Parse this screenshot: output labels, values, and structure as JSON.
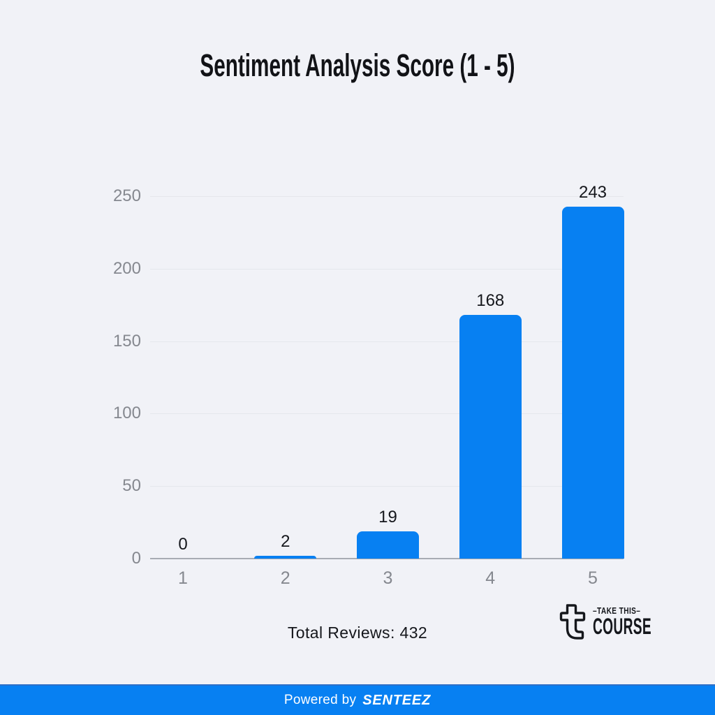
{
  "chart_data": {
    "type": "bar",
    "title": "Sentiment Analysis Score (1 - 5)",
    "categories": [
      "1",
      "2",
      "3",
      "4",
      "5"
    ],
    "values": [
      0,
      2,
      19,
      168,
      243
    ],
    "value_labels": [
      "0",
      "2",
      "19",
      "168",
      "243"
    ],
    "xlabel": "",
    "ylabel": "",
    "ylim": [
      0,
      250
    ],
    "yticks": [
      0,
      50,
      100,
      150,
      200,
      250
    ],
    "grid": true,
    "legend": false,
    "bar_color": "#0780f2"
  },
  "summary": {
    "total_reviews": "Total Reviews: 432"
  },
  "logo": {
    "icon": "take-this-course-t-monogram-icon",
    "top_line": "–TAKE THIS–",
    "bottom_line": "COURSE"
  },
  "footer": {
    "powered_by": "Powered by",
    "brand": "SENTEEZ"
  },
  "colors": {
    "background": "#f1f2f7",
    "bar": "#0780f2",
    "footer_bar": "#0780f2",
    "gridline": "#e5e7ec",
    "axis_line": "#a8acb4",
    "tick_text": "#85888f",
    "label_text": "#15171c"
  }
}
